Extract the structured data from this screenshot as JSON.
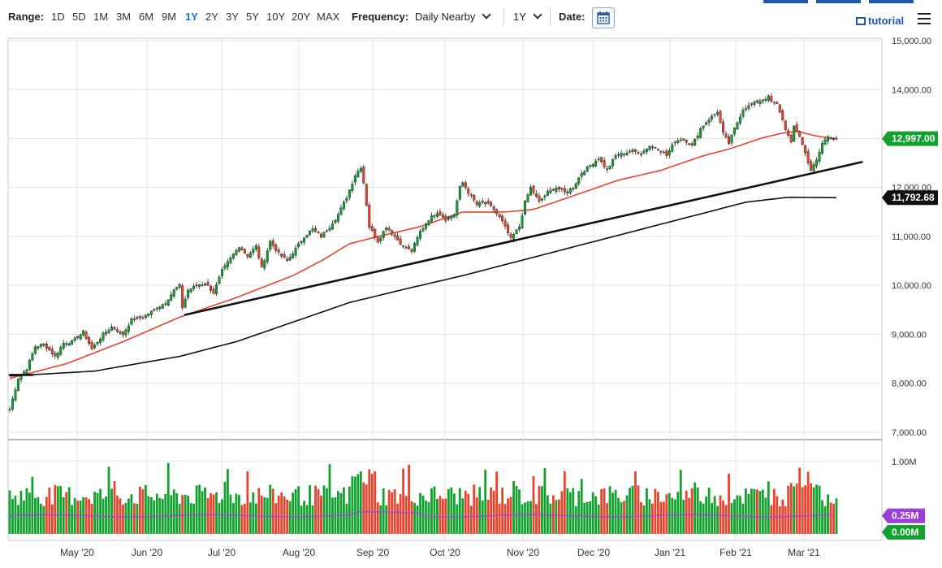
{
  "toolbar": {
    "range_label": "Range:",
    "ranges": [
      "1D",
      "5D",
      "1M",
      "3M",
      "6M",
      "9M",
      "1Y",
      "2Y",
      "3Y",
      "5Y",
      "10Y",
      "20Y",
      "MAX"
    ],
    "active_range": "1Y",
    "frequency_label": "Frequency:",
    "frequency_value": "Daily Nearby",
    "period_value": "1Y",
    "date_label": "Date:",
    "tutorial_label": "tutorial",
    "accent_color": "#1a6fd1"
  },
  "chart_data": {
    "type": "candlestick",
    "x_tick_labels": [
      "May '20",
      "Jun '20",
      "Jul '20",
      "Aug '20",
      "Sep '20",
      "Oct '20",
      "Nov '20",
      "Dec '20",
      "Jan '21",
      "Feb '21",
      "Mar '21"
    ],
    "y_tick_labels": [
      "7,000.00",
      "8,000.00",
      "9,000.00",
      "10,000.00",
      "11,000.00",
      "12,000.00",
      "13,000.00",
      "14,000.00",
      "15,000.00"
    ],
    "ylim": [
      6850,
      15050
    ],
    "last_price": 12997,
    "last_price_label": "12,997.00",
    "last_price_color": "#12a12e",
    "ma_long_value": 11792.68,
    "ma_long_label": "11,792.68",
    "up_color": "#12a12e",
    "down_color": "#e8432c",
    "ma_short_color": "#e8432c",
    "ma_long_color": "#111111",
    "price_knots": [
      [
        0,
        7470
      ],
      [
        3,
        8100
      ],
      [
        6,
        8300
      ],
      [
        9,
        8750
      ],
      [
        12,
        8800
      ],
      [
        16,
        8550
      ],
      [
        19,
        8820
      ],
      [
        22,
        8850
      ],
      [
        26,
        9050
      ],
      [
        29,
        8700
      ],
      [
        33,
        9000
      ],
      [
        36,
        9150
      ],
      [
        40,
        9000
      ],
      [
        43,
        9300
      ],
      [
        47,
        9350
      ],
      [
        51,
        9500
      ],
      [
        55,
        9650
      ],
      [
        58,
        9900
      ],
      [
        60,
        10000
      ],
      [
        61,
        9550
      ],
      [
        63,
        9900
      ],
      [
        66,
        10000
      ],
      [
        69,
        10050
      ],
      [
        72,
        9850
      ],
      [
        75,
        10300
      ],
      [
        78,
        10550
      ],
      [
        81,
        10800
      ],
      [
        84,
        10600
      ],
      [
        87,
        10800
      ],
      [
        89,
        10350
      ],
      [
        92,
        10900
      ],
      [
        95,
        10650
      ],
      [
        98,
        10500
      ],
      [
        101,
        10750
      ],
      [
        104,
        11000
      ],
      [
        107,
        11150
      ],
      [
        110,
        11000
      ],
      [
        113,
        11200
      ],
      [
        116,
        11450
      ],
      [
        119,
        11800
      ],
      [
        122,
        12250
      ],
      [
        124,
        12420
      ],
      [
        125,
        12100
      ],
      [
        127,
        11200
      ],
      [
        130,
        10900
      ],
      [
        133,
        11200
      ],
      [
        136,
        11000
      ],
      [
        139,
        10800
      ],
      [
        142,
        10700
      ],
      [
        145,
        11100
      ],
      [
        148,
        11350
      ],
      [
        151,
        11500
      ],
      [
        154,
        11350
      ],
      [
        157,
        11450
      ],
      [
        159,
        12000
      ],
      [
        160,
        12100
      ],
      [
        162,
        11900
      ],
      [
        165,
        11650
      ],
      [
        168,
        11700
      ],
      [
        171,
        11550
      ],
      [
        174,
        11300
      ],
      [
        177,
        10950
      ],
      [
        180,
        11200
      ],
      [
        182,
        11700
      ],
      [
        184,
        12000
      ],
      [
        185,
        11900
      ],
      [
        187,
        11700
      ],
      [
        190,
        11900
      ],
      [
        193,
        12000
      ],
      [
        196,
        11900
      ],
      [
        199,
        12000
      ],
      [
        202,
        12300
      ],
      [
        205,
        12450
      ],
      [
        208,
        12600
      ],
      [
        211,
        12350
      ],
      [
        214,
        12650
      ],
      [
        217,
        12700
      ],
      [
        220,
        12750
      ],
      [
        223,
        12700
      ],
      [
        226,
        12850
      ],
      [
        229,
        12800
      ],
      [
        232,
        12650
      ],
      [
        235,
        12950
      ],
      [
        238,
        13000
      ],
      [
        241,
        12850
      ],
      [
        244,
        13200
      ],
      [
        247,
        13400
      ],
      [
        250,
        13550
      ],
      [
        252,
        13100
      ],
      [
        254,
        12900
      ],
      [
        256,
        13200
      ],
      [
        259,
        13600
      ],
      [
        262,
        13700
      ],
      [
        265,
        13780
      ],
      [
        268,
        13850
      ],
      [
        269,
        13750
      ],
      [
        271,
        13700
      ],
      [
        272,
        13550
      ],
      [
        274,
        13200
      ],
      [
        276,
        12900
      ],
      [
        277,
        13250
      ],
      [
        279,
        13050
      ],
      [
        281,
        12700
      ],
      [
        283,
        12350
      ],
      [
        285,
        12550
      ],
      [
        287,
        12900
      ],
      [
        289,
        13050
      ],
      [
        291,
        12997
      ]
    ],
    "ma_short_knots": [
      [
        0,
        8100
      ],
      [
        20,
        8400
      ],
      [
        40,
        8850
      ],
      [
        60,
        9350
      ],
      [
        80,
        9750
      ],
      [
        100,
        10200
      ],
      [
        110,
        10500
      ],
      [
        120,
        10850
      ],
      [
        130,
        11000
      ],
      [
        145,
        11200
      ],
      [
        160,
        11500
      ],
      [
        175,
        11500
      ],
      [
        185,
        11550
      ],
      [
        200,
        11850
      ],
      [
        215,
        12150
      ],
      [
        230,
        12350
      ],
      [
        245,
        12650
      ],
      [
        255,
        12800
      ],
      [
        265,
        13000
      ],
      [
        272,
        13100
      ],
      [
        278,
        13150
      ],
      [
        285,
        13050
      ],
      [
        291,
        13000
      ]
    ],
    "ma_long_knots": [
      [
        0,
        8150
      ],
      [
        30,
        8250
      ],
      [
        60,
        8550
      ],
      [
        80,
        8850
      ],
      [
        100,
        9250
      ],
      [
        120,
        9650
      ],
      [
        140,
        9930
      ],
      [
        160,
        10200
      ],
      [
        180,
        10500
      ],
      [
        200,
        10800
      ],
      [
        220,
        11100
      ],
      [
        240,
        11400
      ],
      [
        260,
        11700
      ],
      [
        275,
        11800
      ],
      [
        291,
        11792
      ]
    ],
    "trendlines": [
      {
        "x1": 62,
        "y1": 9400,
        "x2": 301,
        "y2": 12520
      },
      {
        "x1": 0,
        "y1": 8170,
        "x2": 8,
        "y2": 8170
      }
    ],
    "volume": {
      "ylim": [
        0,
        1300000
      ],
      "y_tick_labels": [
        "1.00M"
      ],
      "avg_label": "0.25M",
      "avg_value": 250000,
      "zero_label": "0.00M",
      "avg_color": "#a34fc8",
      "avg_label_bg": "#9b3fd6",
      "zero_label_bg": "#12a12e"
    }
  }
}
